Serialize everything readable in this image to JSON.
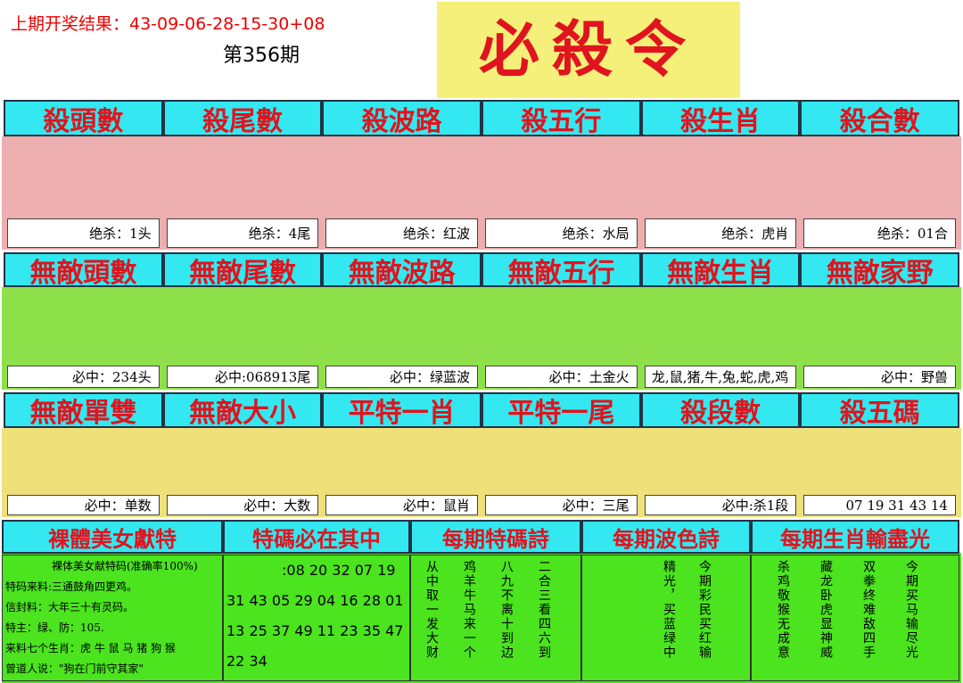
{
  "header": {
    "last_result": "上期开奖结果：43-09-06-28-15-30+08",
    "issue": "第356期",
    "title": "必殺令"
  },
  "sections": [
    {
      "headers": [
        "殺頭數",
        "殺尾數",
        "殺波路",
        "殺五行",
        "殺生肖",
        "殺合數"
      ],
      "values": [
        "绝杀：1头",
        "绝杀：4尾",
        "绝杀：红波",
        "绝杀：水局",
        "绝杀：虎肖",
        "绝杀：01合"
      ]
    },
    {
      "headers": [
        "無敵頭數",
        "無敵尾數",
        "無敵波路",
        "無敵五行",
        "無敵生肖",
        "無敵家野"
      ],
      "values": [
        "必中：234头",
        "必中:068913尾",
        "必中：绿蓝波",
        "必中：土金火",
        "龙,鼠,猪,牛,兔,蛇,虎,鸡",
        "必中：野兽"
      ]
    },
    {
      "headers": [
        "無敵單雙",
        "無敵大小",
        "平特一肖",
        "平特一尾",
        "殺段數",
        "殺五碼"
      ],
      "values": [
        "必中：单数",
        "必中：大数",
        "必中：鼠肖",
        "必中：三尾",
        "必中:杀1段",
        "07 19 31 43 14"
      ]
    }
  ],
  "bottom": {
    "headers": [
      "裸體美女獻特",
      "特碼必在其中",
      "每期特碼詩",
      "每期波色詩",
      "每期生肖輸盡光"
    ],
    "info": [
      "裸体美女献特码(准确率100%)",
      "特码来料:三通鼓角四更鸡。",
      "信封料：大年三十有灵码。",
      "特主：绿、防：105.",
      "来料七个生肖：虎 牛 鼠 马 猪 狗 猴",
      "曾道人说：\"狗在门前守其家\""
    ],
    "numbers": [
      ":08 20 32 07 19",
      "31 43 05 29 04 16 28 01",
      "13 25 37 49 11 23 35 47",
      "22 34"
    ],
    "special_poem": [
      "从中取一发大财",
      "鸡羊牛马来一个",
      "八九不离十到边",
      "二合三看四六到"
    ],
    "color_poem": [
      "精光，买蓝绿中",
      "今期彩民买红输"
    ],
    "zodiac_poem": [
      "杀鸡敬猴无成意",
      "藏龙卧虎显神威",
      "双拳终难敌四手",
      "今期买马输尽光"
    ]
  }
}
